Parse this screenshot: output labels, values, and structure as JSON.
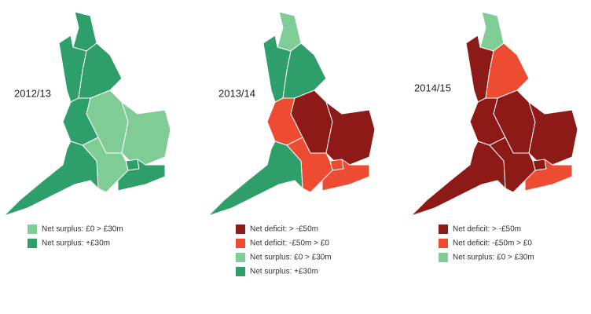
{
  "maps": [
    {
      "label": "2012/13",
      "region_colors": [
        "#2e9e6a",
        "#2e9e6a",
        "#2e9e6a",
        "#7fcc96",
        "#2e9e6a",
        "#7fcc96",
        "#2e9e6a",
        "#7fcc96",
        "#2e9e6a",
        "#2e9e6a"
      ],
      "legend": [
        {
          "color": "#7fcc96",
          "text": "Net surplus: £0 > £30m"
        },
        {
          "color": "#2e9e6a",
          "text": "Net surplus: +£30m"
        }
      ]
    },
    {
      "label": "2013/14",
      "region_colors": [
        "#7fcc96",
        "#2e9e6a",
        "#2e9e6a",
        "#8e1a18",
        "#ee4c32",
        "#8e1a18",
        "#ee4c32",
        "#ee4c32",
        "#ee4c32",
        "#2e9e6a"
      ],
      "legend": [
        {
          "color": "#8e1a18",
          "text": "Net deficit: > -£50m"
        },
        {
          "color": "#ee4c32",
          "text": "Net deficit: -£50m > £0"
        },
        {
          "color": "#7fcc96",
          "text": "Net surplus: £0 > £30m"
        },
        {
          "color": "#2e9e6a",
          "text": "Net surplus: +£30m"
        }
      ]
    },
    {
      "label": "2014/15",
      "region_colors": [
        "#7fcc96",
        "#8e1a18",
        "#ee4c32",
        "#8e1a18",
        "#8e1a18",
        "#8e1a18",
        "#8e1a18",
        "#8e1a18",
        "#ee4c32",
        "#8e1a18"
      ],
      "legend": [
        {
          "color": "#8e1a18",
          "text": "Net deficit: > -£50m"
        },
        {
          "color": "#ee4c32",
          "text": "Net deficit: -£50m > £0"
        },
        {
          "color": "#7fcc96",
          "text": "Net surplus: £0 > £30m"
        }
      ]
    }
  ]
}
